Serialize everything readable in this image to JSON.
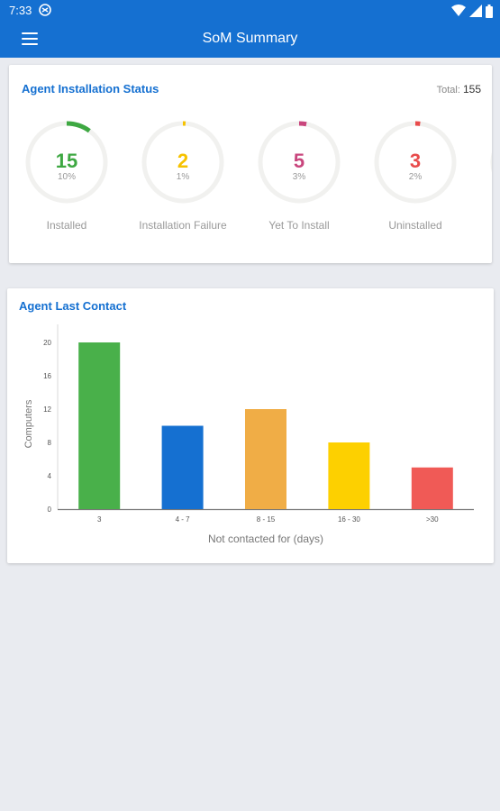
{
  "status_bar": {
    "time": "7:33"
  },
  "app_bar": {
    "title": "SoM Summary"
  },
  "install_status": {
    "title": "Agent Installation Status",
    "total_label": "Total:",
    "total_value": "155",
    "items": [
      {
        "count": "15",
        "percent": "10%",
        "label": "Installed",
        "color": "#3ea842"
      },
      {
        "count": "2",
        "percent": "1%",
        "label": "Installation Failure",
        "color": "#f6c200"
      },
      {
        "count": "5",
        "percent": "3%",
        "label": "Yet To Install",
        "color": "#c9467d"
      },
      {
        "count": "3",
        "percent": "2%",
        "label": "Uninstalled",
        "color": "#e84b4b"
      }
    ]
  },
  "last_contact": {
    "title": "Agent Last Contact"
  },
  "chart_data": {
    "type": "bar",
    "categories": [
      "3",
      "4 - 7",
      "8 - 15",
      "16 - 30",
      ">30"
    ],
    "values": [
      20,
      10,
      12,
      8,
      5
    ],
    "colors": [
      "#49b04a",
      "#1570d1",
      "#f0ad46",
      "#fdd000",
      "#f05a56"
    ],
    "xlabel": "Not contacted for (days)",
    "ylabel": "Computers",
    "yticks": [
      0,
      4,
      8,
      12,
      16,
      20
    ],
    "ylim": [
      0,
      20
    ]
  }
}
